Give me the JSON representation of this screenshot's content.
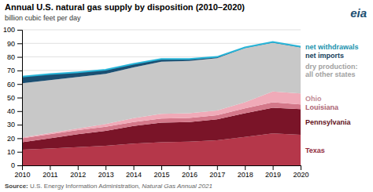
{
  "chart_data": {
    "type": "area",
    "title": "Annual U.S. natural gas supply by disposition (2010–2020)",
    "subtitle": "billion cubic feet per day",
    "stacked": true,
    "grid": true,
    "x": [
      2010,
      2011,
      2012,
      2013,
      2014,
      2015,
      2016,
      2017,
      2018,
      2019,
      2020
    ],
    "xlim": [
      2010,
      2020
    ],
    "xticks": [
      2010,
      2011,
      2012,
      2013,
      2014,
      2015,
      2016,
      2017,
      2018,
      2019,
      2020
    ],
    "ylim": [
      0,
      100
    ],
    "yticks": [
      0,
      10,
      20,
      30,
      40,
      50,
      60,
      70,
      80,
      90,
      100
    ],
    "series": [
      {
        "name": "Texas",
        "color": "#b5374a",
        "values": [
          11.5,
          12.5,
          13.5,
          14.5,
          16.0,
          17.0,
          17.5,
          18.5,
          21.0,
          23.5,
          22.5
        ]
      },
      {
        "name": "Pennsylvania",
        "color": "#7a1428",
        "values": [
          5.5,
          7.5,
          9.5,
          11.0,
          13.0,
          14.5,
          14.5,
          15.5,
          17.5,
          19.0,
          19.0
        ]
      },
      {
        "name": "Louisiana",
        "color": "#d4788a",
        "values": [
          3.0,
          3.0,
          3.0,
          3.0,
          3.0,
          3.0,
          3.0,
          3.0,
          3.5,
          4.0,
          3.5
        ]
      },
      {
        "name": "Ohio",
        "color": "#f0aab8",
        "values": [
          0.5,
          0.8,
          1.2,
          2.0,
          2.8,
          3.5,
          3.5,
          3.5,
          4.5,
          8.0,
          8.0
        ]
      },
      {
        "name": "dry production:\nall other states",
        "color": "#c8c8c8",
        "values": [
          40.0,
          39.0,
          38.0,
          37.0,
          37.5,
          38.5,
          38.5,
          38.5,
          40.0,
          36.0,
          34.0
        ]
      },
      {
        "name": "net imports",
        "color": "#1b4f72",
        "values": [
          5.0,
          4.5,
          3.5,
          3.0,
          2.5,
          2.0,
          1.5,
          1.0,
          0.5,
          0.5,
          0.5
        ]
      },
      {
        "name": "net withdrawals",
        "color": "#29b5d8",
        "type": "line",
        "values": [
          65.5,
          67.3,
          68.7,
          70.5,
          74.8,
          78.5,
          78.5,
          80.0,
          87.0,
          91.0,
          87.5
        ]
      }
    ],
    "source": [
      "Source:",
      "U.S. Energy Information Administration,",
      "Natural Gas Annual 2021"
    ],
    "annotations": [
      "eia"
    ]
  }
}
